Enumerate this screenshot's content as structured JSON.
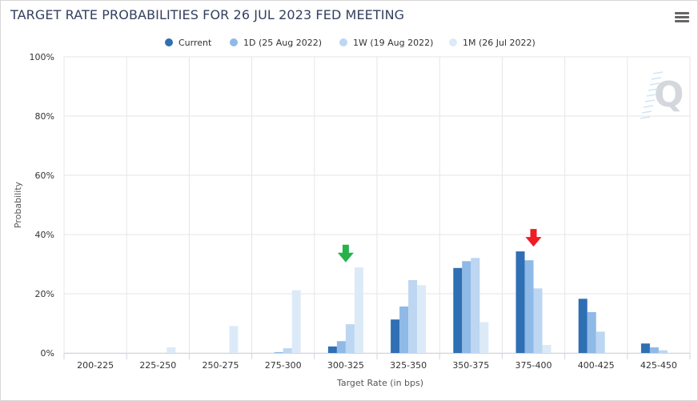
{
  "title": "TARGET RATE PROBABILITIES FOR 26 JUL 2023 FED MEETING",
  "menu_icon": "hamburger-menu-icon",
  "watermark_icon": "q-logo-icon",
  "chart_data": {
    "type": "bar",
    "categories": [
      "200-225",
      "225-250",
      "250-275",
      "275-300",
      "300-325",
      "325-350",
      "350-375",
      "375-400",
      "400-425",
      "425-450"
    ],
    "series": [
      {
        "name": "Current",
        "color": "#2f6fb3",
        "values": [
          0,
          0,
          0,
          0,
          2.2,
          11.3,
          28.7,
          34.3,
          18.3,
          3.2
        ]
      },
      {
        "name": "1D (25 Aug 2022)",
        "color": "#8fb9e6",
        "values": [
          0,
          0,
          0,
          0.3,
          4.0,
          15.7,
          31.0,
          31.3,
          13.8,
          1.9
        ]
      },
      {
        "name": "1W (19 Aug 2022)",
        "color": "#bdd6f1",
        "values": [
          0,
          0,
          0,
          1.6,
          9.7,
          24.6,
          32.1,
          21.8,
          7.2,
          0.9
        ]
      },
      {
        "name": "1M (26 Jul 2022)",
        "color": "#dceaf8",
        "values": [
          0,
          1.9,
          9.1,
          21.2,
          28.9,
          22.9,
          10.4,
          2.7,
          0,
          0
        ]
      }
    ],
    "xlabel": "Target Rate (in bps)",
    "ylabel": "Probability",
    "ylim": [
      0,
      100
    ],
    "yticks": [
      "0%",
      "20%",
      "40%",
      "60%",
      "80%",
      "100%"
    ],
    "ytick_values": [
      0,
      20,
      40,
      60,
      80,
      100
    ],
    "grid": true,
    "legend_position": "top-center",
    "annotations": [
      {
        "type": "arrow-down",
        "color": "#27b24a",
        "category": "300-325",
        "value": 29
      },
      {
        "type": "arrow-down",
        "color": "#ee1c25",
        "category": "375-400",
        "value": 34.3
      }
    ]
  }
}
